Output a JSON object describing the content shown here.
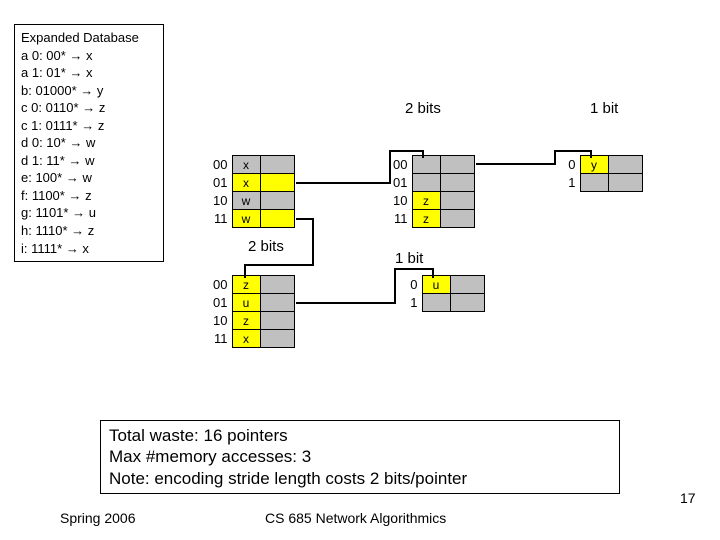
{
  "database": {
    "title": "Expanded Database",
    "entries": [
      {
        "key": "a 0",
        "pat": "00*",
        "val": "x"
      },
      {
        "key": "a 1",
        "pat": "01*",
        "val": "x"
      },
      {
        "key": "b",
        "pat": "01000*",
        "val": "y"
      },
      {
        "key": "c 0",
        "pat": "0110*",
        "val": "z"
      },
      {
        "key": "c 1",
        "pat": "0111*",
        "val": "z"
      },
      {
        "key": "d 0",
        "pat": "10*",
        "val": "w"
      },
      {
        "key": "d 1",
        "pat": "11*",
        "val": "w"
      },
      {
        "key": "e",
        "pat": "100*",
        "val": "w"
      },
      {
        "key": "f",
        "pat": "1100*",
        "val": "z"
      },
      {
        "key": "g",
        "pat": "1101*",
        "val": "u"
      },
      {
        "key": "h",
        "pat": "1110*",
        "val": "z"
      },
      {
        "key": "i",
        "pat": "1111*",
        "val": "x"
      }
    ]
  },
  "labels": {
    "bits2_top": "2 bits",
    "bit1_top": "1 bit",
    "bits2_mid": "2 bits",
    "bit1_mid": "1 bit"
  },
  "tables": {
    "t1": {
      "rows": [
        {
          "k": "00",
          "v": "x",
          "ptr": false,
          "col": "#c0c0c0"
        },
        {
          "k": "01",
          "v": "x",
          "ptr": true,
          "col": "#ffff00"
        },
        {
          "k": "10",
          "v": "w",
          "ptr": false,
          "col": "#c0c0c0"
        },
        {
          "k": "11",
          "v": "w",
          "ptr": true,
          "col": "#ffff00"
        }
      ]
    },
    "t2": {
      "rows": [
        {
          "k": "00",
          "v": "",
          "ptr": false,
          "col": "#c0c0c0"
        },
        {
          "k": "01",
          "v": "",
          "ptr": false,
          "col": "#c0c0c0"
        },
        {
          "k": "10",
          "v": "z",
          "ptr": false,
          "col": "#ffff00"
        },
        {
          "k": "11",
          "v": "z",
          "ptr": false,
          "col": "#ffff00"
        }
      ]
    },
    "t3": {
      "rows": [
        {
          "k": "0",
          "v": "y",
          "ptr": false,
          "col": "#ffff00"
        },
        {
          "k": "1",
          "v": "",
          "ptr": false,
          "col": "#c0c0c0"
        }
      ]
    },
    "t4": {
      "rows": [
        {
          "k": "00",
          "v": "z",
          "ptr": false,
          "col": "#ffff00"
        },
        {
          "k": "01",
          "v": "u",
          "ptr": false,
          "col": "#ffff00"
        },
        {
          "k": "10",
          "v": "z",
          "ptr": false,
          "col": "#ffff00"
        },
        {
          "k": "11",
          "v": "x",
          "ptr": false,
          "col": "#ffff00"
        }
      ]
    },
    "t5": {
      "rows": [
        {
          "k": "0",
          "v": "u",
          "ptr": false,
          "col": "#ffff00"
        },
        {
          "k": "1",
          "v": "",
          "ptr": false,
          "col": "#c0c0c0"
        }
      ]
    }
  },
  "colors": {
    "yellow": "#ffff00",
    "grey": "#c0c0c0",
    "line": "#000000"
  },
  "summary": {
    "l1": "Total waste: 16 pointers",
    "l2": "Max #memory accesses: 3",
    "l3": "Note: encoding stride length costs 2 bits/pointer"
  },
  "footer": {
    "left": "Spring 2006",
    "center": "CS 685 Network Algorithmics",
    "num": "17"
  }
}
